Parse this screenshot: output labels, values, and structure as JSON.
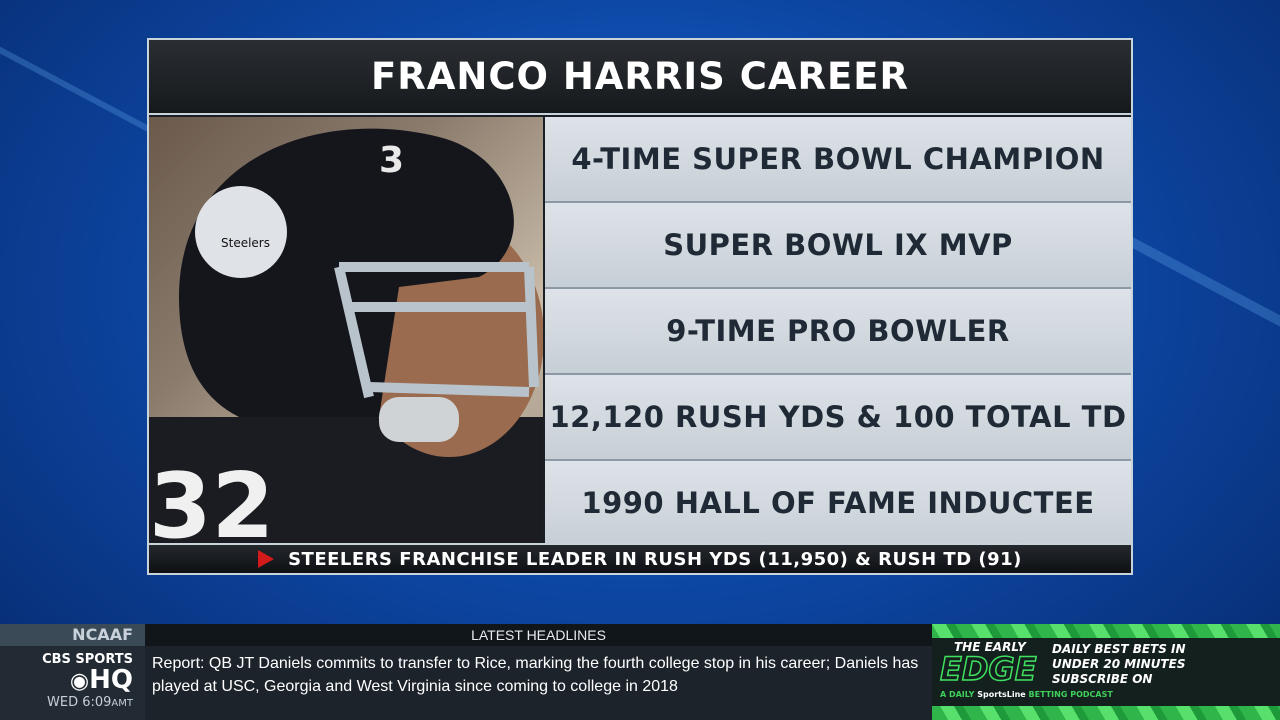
{
  "card": {
    "title": "FRANCO HARRIS CAREER",
    "facts": [
      "4-TIME SUPER BOWL CHAMPION",
      "SUPER BOWL IX MVP",
      "9-TIME PRO BOWLER",
      "12,120 RUSH YDS & 100 TOTAL TD",
      "1990 HALL OF FAME INDUCTEE"
    ],
    "footer": "STEELERS FRANCHISE LEADER IN RUSH YDS (11,950) & RUSH TD (91)",
    "photo": {
      "helmet_text": "Steelers",
      "helmet_number": "3",
      "jersey_number": "32"
    }
  },
  "ticker": {
    "category": "NCAAF",
    "header": "LATEST HEADLINES",
    "network": "CBS SPORTS",
    "network_sub": "HQ",
    "time": "WED 6:09",
    "time_suffix": "AMT",
    "headline": "Report: QB JT Daniels commits to transfer to Rice, marking the fourth college stop in his career; Daniels has played at USC, Georgia and West Virginia since coming to college in 2018"
  },
  "ad": {
    "the_early": "THE EARLY",
    "edge": "EDGE",
    "line1": "DAILY BEST BETS IN",
    "line2": "UNDER 20 MINUTES",
    "line3": "SUBSCRIBE ON",
    "tagline_a": "A DAILY",
    "brand": "SportsLine",
    "tagline_b": "BETTING PODCAST"
  },
  "colors": {
    "accent_red": "#d21a1a",
    "ad_green": "#2fb54a",
    "fact_text": "#1f2a36"
  }
}
